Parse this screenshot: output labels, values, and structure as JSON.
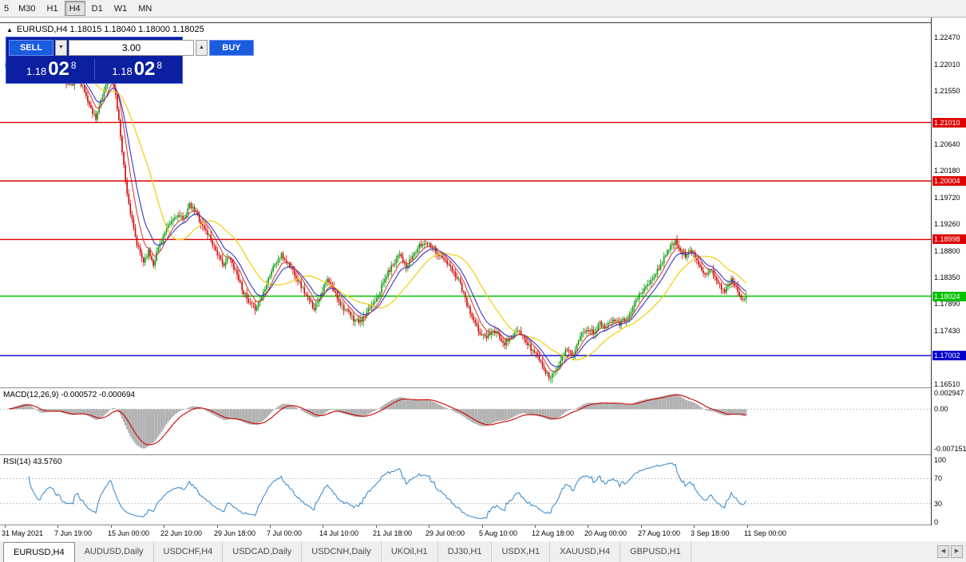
{
  "toolbar": {
    "timeframes": [
      "5",
      "M30",
      "H1",
      "H4",
      "D1",
      "W1",
      "MN"
    ],
    "active": "H4"
  },
  "title": {
    "collapse_icon": "▲",
    "text": "EURUSD,H4 1.18015 1.18040 1.18000 1.18025"
  },
  "one_click": {
    "sell_label": "SELL",
    "buy_label": "BUY",
    "volume": "3.00",
    "icons": {
      "dropdown": "▼",
      "spin_up": "▲"
    },
    "sell_price": {
      "big": "1.18",
      "pips": "02",
      "frac": "8"
    },
    "buy_price": {
      "big": "1.18",
      "pips": "02",
      "frac": "8"
    }
  },
  "panels": {
    "macd_label": "MACD(12,26,9) -0.000572 -0.000694",
    "rsi_label": "RSI(14) 43.5760"
  },
  "tabs": {
    "items": [
      "EURUSD,H4",
      "AUDUSD,Daily",
      "USDCHF,H4",
      "USDCAD,Daily",
      "USDCNH,Daily",
      "UKOil,H1",
      "DJ30,H1",
      "USDX,H1",
      "XAUUSD,H4",
      "GBPUSD,H1"
    ],
    "active": "EURUSD,H4",
    "scroll_left_icon": "◀",
    "scroll_right_icon": "▶"
  },
  "chart_data": {
    "type": "candlestick",
    "symbol": "EURUSD",
    "timeframe": "H4",
    "ohlc_current": {
      "open": 1.18015,
      "high": 1.1804,
      "low": 1.18,
      "close": 1.18025
    },
    "ylim": [
      1.16455,
      1.22814
    ],
    "x_view": {
      "n_slots": 567,
      "data_end_slot": 452
    },
    "colors": {
      "bull": "#0a9a0a",
      "bear": "#d40000"
    },
    "price_axis_ticks": [
      "1.22470",
      "1.22010",
      "1.21550",
      "1.20640",
      "1.20180",
      "1.19720",
      "1.19260",
      "1.18800",
      "1.18350",
      "1.17890",
      "1.17430",
      "1.16510"
    ],
    "levels": [
      {
        "price": 1.2101,
        "label": "1.21010",
        "color": "#dd0000"
      },
      {
        "price": 1.20004,
        "label": "1.20004",
        "color": "#dd0000"
      },
      {
        "price": 1.18998,
        "label": "1.18998",
        "color": "#dd0000"
      },
      {
        "price": 1.18024,
        "label": "1.18024",
        "color": "#00c000"
      },
      {
        "price": 1.17002,
        "label": "1.17002",
        "color": "#0000cc"
      }
    ],
    "time_axis": [
      "31 May 2021",
      "7 Jun 19:00",
      "15 Jun 00:00",
      "22 Jun 10:00",
      "29 Jun 18:00",
      "7 Jul 00:00",
      "14 Jul 10:00",
      "21 Jul 18:00",
      "29 Jul 00:00",
      "5 Aug 10:00",
      "12 Aug 18:00",
      "20 Aug 00:00",
      "27 Aug 10:00",
      "3 Sep 18:00",
      "11 Sep 00:00"
    ],
    "candles": {
      "n": 452,
      "seed": 11,
      "jitter": 0.00045,
      "wick": 0.0007,
      "last_close": 1.18025,
      "close_anchors": [
        [
          0,
          1.22
        ],
        [
          6,
          1.2228
        ],
        [
          12,
          1.224
        ],
        [
          16,
          1.221
        ],
        [
          20,
          1.218
        ],
        [
          24,
          1.2196
        ],
        [
          28,
          1.2206
        ],
        [
          32,
          1.219
        ],
        [
          36,
          1.217
        ],
        [
          40,
          1.2164
        ],
        [
          44,
          1.218
        ],
        [
          48,
          1.2154
        ],
        [
          52,
          1.2124
        ],
        [
          55,
          1.211
        ],
        [
          58,
          1.2136
        ],
        [
          61,
          1.2166
        ],
        [
          64,
          1.219
        ],
        [
          67,
          1.2148
        ],
        [
          70,
          1.208
        ],
        [
          73,
          1.2
        ],
        [
          76,
          1.1944
        ],
        [
          80,
          1.189
        ],
        [
          84,
          1.1862
        ],
        [
          87,
          1.188
        ],
        [
          90,
          1.1858
        ],
        [
          93,
          1.1886
        ],
        [
          96,
          1.1906
        ],
        [
          100,
          1.1926
        ],
        [
          104,
          1.1942
        ],
        [
          108,
          1.1934
        ],
        [
          112,
          1.1958
        ],
        [
          116,
          1.1946
        ],
        [
          120,
          1.1922
        ],
        [
          124,
          1.1906
        ],
        [
          128,
          1.1882
        ],
        [
          132,
          1.1856
        ],
        [
          136,
          1.1868
        ],
        [
          140,
          1.1848
        ],
        [
          144,
          1.1816
        ],
        [
          148,
          1.179
        ],
        [
          152,
          1.1782
        ],
        [
          156,
          1.1802
        ],
        [
          160,
          1.1834
        ],
        [
          164,
          1.1858
        ],
        [
          168,
          1.1872
        ],
        [
          172,
          1.1858
        ],
        [
          176,
          1.1842
        ],
        [
          180,
          1.182
        ],
        [
          184,
          1.1798
        ],
        [
          188,
          1.1782
        ],
        [
          192,
          1.1808
        ],
        [
          196,
          1.183
        ],
        [
          200,
          1.1812
        ],
        [
          204,
          1.179
        ],
        [
          208,
          1.1775
        ],
        [
          212,
          1.1763
        ],
        [
          216,
          1.1758
        ],
        [
          220,
          1.1772
        ],
        [
          224,
          1.1792
        ],
        [
          228,
          1.1812
        ],
        [
          232,
          1.1838
        ],
        [
          236,
          1.1858
        ],
        [
          240,
          1.1878
        ],
        [
          244,
          1.185
        ],
        [
          248,
          1.1872
        ],
        [
          252,
          1.1888
        ],
        [
          256,
          1.1896
        ],
        [
          260,
          1.1888
        ],
        [
          264,
          1.1872
        ],
        [
          268,
          1.1862
        ],
        [
          272,
          1.1846
        ],
        [
          276,
          1.1832
        ],
        [
          280,
          1.1796
        ],
        [
          284,
          1.1766
        ],
        [
          288,
          1.1742
        ],
        [
          292,
          1.1732
        ],
        [
          296,
          1.1742
        ],
        [
          300,
          1.1736
        ],
        [
          304,
          1.1722
        ],
        [
          308,
          1.1732
        ],
        [
          312,
          1.1742
        ],
        [
          316,
          1.1728
        ],
        [
          320,
          1.1712
        ],
        [
          324,
          1.17
        ],
        [
          328,
          1.1678
        ],
        [
          331,
          1.1662
        ],
        [
          334,
          1.1672
        ],
        [
          338,
          1.1692
        ],
        [
          342,
          1.1712
        ],
        [
          346,
          1.1702
        ],
        [
          350,
          1.1732
        ],
        [
          354,
          1.1748
        ],
        [
          358,
          1.174
        ],
        [
          362,
          1.1756
        ],
        [
          366,
          1.175
        ],
        [
          370,
          1.1766
        ],
        [
          374,
          1.1756
        ],
        [
          378,
          1.1764
        ],
        [
          382,
          1.1784
        ],
        [
          386,
          1.1804
        ],
        [
          390,
          1.1818
        ],
        [
          394,
          1.1832
        ],
        [
          398,
          1.185
        ],
        [
          402,
          1.1876
        ],
        [
          405,
          1.1888
        ],
        [
          408,
          1.1896
        ],
        [
          411,
          1.1882
        ],
        [
          414,
          1.1872
        ],
        [
          418,
          1.188
        ],
        [
          422,
          1.1858
        ],
        [
          426,
          1.1842
        ],
        [
          430,
          1.1848
        ],
        [
          434,
          1.1822
        ],
        [
          438,
          1.1812
        ],
        [
          442,
          1.1832
        ],
        [
          445,
          1.1818
        ],
        [
          448,
          1.18
        ],
        [
          451,
          1.18025
        ]
      ]
    },
    "moving_averages": [
      {
        "type": "sma",
        "period": 30,
        "color": "#f2cf1d",
        "width": 1.3
      },
      {
        "type": "ema",
        "period": 14,
        "color": "#3535c8",
        "width": 1.1
      },
      {
        "type": "ema",
        "period": 8,
        "color": "#cc3333",
        "width": 1.0
      }
    ],
    "macd": {
      "fast": 12,
      "slow": 26,
      "signal_period": 9,
      "current_main": -0.000572,
      "current_signal": -0.000694,
      "range": [
        -0.0082,
        0.0038
      ],
      "hist_color": "#aaaaaa",
      "signal_color": "#cc0000",
      "axis_labels": [
        {
          "value": 0.002947,
          "label": "0.002947"
        },
        {
          "value": 0,
          "label": "0.00"
        },
        {
          "value": -0.007151,
          "label": "-0.007151"
        }
      ]
    },
    "rsi": {
      "period": 14,
      "current": 43.576,
      "color": "#3e8fd0",
      "levels": [
        {
          "value": 100,
          "label": "100"
        },
        {
          "value": 70,
          "label": "70"
        },
        {
          "value": 30,
          "label": "30"
        },
        {
          "value": 0,
          "label": "0"
        }
      ]
    }
  }
}
